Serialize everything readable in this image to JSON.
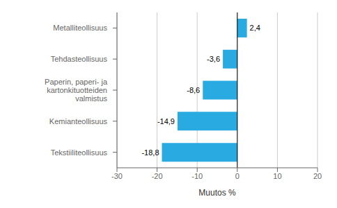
{
  "chart_data": {
    "type": "bar",
    "orientation": "horizontal",
    "categories": [
      "Tekstiiliteollisuus",
      "Kemianteollisuus",
      "Paperin, paperi- ja kartonkituotteiden valmistus",
      "Tehdasteollisuus",
      "Metalliteollisuus"
    ],
    "values": [
      -18.8,
      -14.9,
      -8.6,
      -3.6,
      2.4
    ],
    "value_labels": [
      "-18,8",
      "-14,9",
      "-8,6",
      "-3,6",
      "2,4"
    ],
    "data_labels": true,
    "color": "#29abe2",
    "xlim": [
      -30,
      20
    ],
    "xticks": [
      -30,
      -20,
      -10,
      0,
      10,
      20
    ],
    "xlabel": "Muutos %",
    "grid": true
  }
}
